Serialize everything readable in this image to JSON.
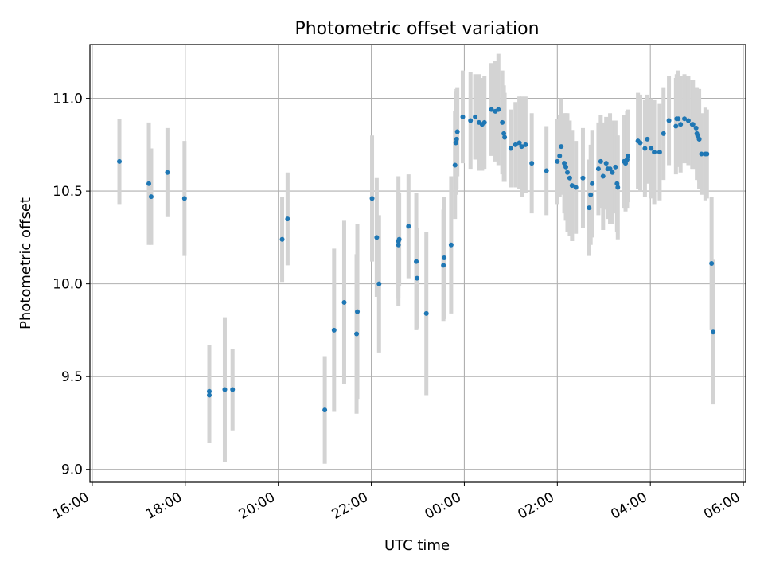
{
  "chart_data": {
    "type": "scatter",
    "title": "Photometric offset variation",
    "xlabel": "UTC time",
    "ylabel": "Photometric offset",
    "ylim": [
      8.93,
      11.29
    ],
    "xlim_hours": [
      15.95,
      30.05
    ],
    "grid": true,
    "colors": {
      "point": "#1f77b4",
      "errorbar": "#d3d3d3"
    },
    "xticks": [
      {
        "label": "16:00",
        "hour": 16
      },
      {
        "label": "18:00",
        "hour": 18
      },
      {
        "label": "20:00",
        "hour": 20
      },
      {
        "label": "22:00",
        "hour": 22
      },
      {
        "label": "00:00",
        "hour": 24
      },
      {
        "label": "02:00",
        "hour": 26
      },
      {
        "label": "04:00",
        "hour": 28
      },
      {
        "label": "06:00",
        "hour": 30
      }
    ],
    "yticks": [
      {
        "label": "9.0",
        "value": 9.0
      },
      {
        "label": "9.5",
        "value": 9.5
      },
      {
        "label": "10.0",
        "value": 10.0
      },
      {
        "label": "10.5",
        "value": 10.5
      },
      {
        "label": "11.0",
        "value": 11.0
      }
    ],
    "series": [
      {
        "x": [
          "16:35",
          "17:13",
          "17:16",
          "17:37",
          "17:59",
          "18:31",
          "18:31",
          "18:51",
          "19:01",
          "20:05",
          "20:12",
          "21:00",
          "21:12",
          "21:25",
          "21:41",
          "21:42",
          "22:01",
          "22:07",
          "22:10",
          "22:35",
          "22:35",
          "22:36",
          "22:48",
          "22:58",
          "22:59",
          "23:11",
          "23:33",
          "23:34",
          "23:43",
          "23:48",
          "23:49",
          "23:50",
          "23:51",
          "23:58",
          "24:08",
          "24:14",
          "24:19",
          "24:23",
          "24:26",
          "24:35",
          "24:40",
          "24:44",
          "24:49",
          "24:51",
          "24:52",
          "25:00",
          "25:06",
          "25:11",
          "25:14",
          "25:19",
          "25:27",
          "25:46",
          "26:00",
          "26:03",
          "26:05",
          "26:09",
          "26:11",
          "26:13",
          "26:16",
          "26:19",
          "26:24",
          "26:33",
          "26:41",
          "26:43",
          "26:45",
          "26:53",
          "26:56",
          "26:59",
          "27:03",
          "27:05",
          "27:08",
          "27:11",
          "27:15",
          "27:17",
          "27:18",
          "27:26",
          "27:28",
          "27:30",
          "27:31",
          "27:44",
          "27:47",
          "27:53",
          "27:56",
          "28:01",
          "28:05",
          "28:12",
          "28:17",
          "28:24",
          "28:33",
          "28:34",
          "28:36",
          "28:39",
          "28:44",
          "28:49",
          "28:54",
          "28:55",
          "28:59",
          "29:00",
          "29:01",
          "29:03",
          "29:03",
          "29:06",
          "29:11",
          "29:13",
          "29:19",
          "29:21"
        ],
        "y": [
          10.66,
          10.54,
          10.47,
          10.6,
          10.46,
          9.4,
          9.42,
          9.43,
          9.43,
          10.24,
          10.35,
          9.32,
          9.75,
          9.9,
          9.73,
          9.85,
          10.46,
          10.25,
          10.0,
          10.21,
          10.23,
          10.24,
          10.31,
          10.12,
          10.03,
          9.84,
          10.1,
          10.14,
          10.21,
          10.64,
          10.76,
          10.78,
          10.82,
          10.9,
          10.88,
          10.9,
          10.87,
          10.86,
          10.87,
          10.94,
          10.93,
          10.94,
          10.87,
          10.81,
          10.79,
          10.73,
          10.75,
          10.76,
          10.74,
          10.75,
          10.65,
          10.61,
          10.66,
          10.69,
          10.74,
          10.65,
          10.63,
          10.6,
          10.57,
          10.53,
          10.52,
          10.57,
          10.41,
          10.48,
          10.54,
          10.62,
          10.66,
          10.58,
          10.65,
          10.62,
          10.62,
          10.6,
          10.63,
          10.54,
          10.52,
          10.66,
          10.65,
          10.67,
          10.69,
          10.77,
          10.76,
          10.73,
          10.78,
          10.73,
          10.71,
          10.71,
          10.81,
          10.88,
          10.85,
          10.89,
          10.89,
          10.86,
          10.89,
          10.88,
          10.86,
          10.86,
          10.84,
          10.81,
          10.8,
          10.78,
          10.78,
          10.7,
          10.7,
          10.7,
          10.11,
          9.74
        ],
        "err": [
          0.23,
          0.33,
          0.26,
          0.24,
          0.31,
          0.26,
          0.25,
          0.39,
          0.22,
          0.23,
          0.25,
          0.29,
          0.44,
          0.44,
          0.43,
          0.47,
          0.34,
          0.32,
          0.37,
          0.29,
          0.35,
          0.25,
          0.28,
          0.37,
          0.27,
          0.44,
          0.3,
          0.33,
          0.37,
          0.29,
          0.28,
          0.27,
          0.24,
          0.25,
          0.26,
          0.23,
          0.26,
          0.25,
          0.25,
          0.25,
          0.27,
          0.3,
          0.28,
          0.26,
          0.24,
          0.21,
          0.23,
          0.25,
          0.27,
          0.26,
          0.27,
          0.24,
          0.23,
          0.22,
          0.26,
          0.27,
          0.29,
          0.32,
          0.31,
          0.3,
          0.25,
          0.27,
          0.26,
          0.27,
          0.29,
          0.25,
          0.25,
          0.29,
          0.25,
          0.27,
          0.3,
          0.28,
          0.25,
          0.26,
          0.28,
          0.25,
          0.26,
          0.26,
          0.25,
          0.26,
          0.26,
          0.26,
          0.24,
          0.27,
          0.28,
          0.26,
          0.25,
          0.24,
          0.26,
          0.24,
          0.26,
          0.26,
          0.24,
          0.24,
          0.24,
          0.24,
          0.22,
          0.25,
          0.24,
          0.23,
          0.27,
          0.22,
          0.25,
          0.24,
          0.36,
          0.39
        ]
      }
    ]
  }
}
